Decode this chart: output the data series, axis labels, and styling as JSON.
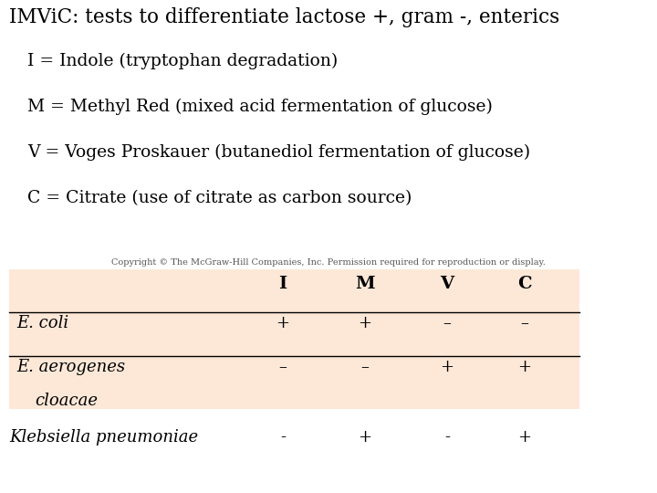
{
  "title": "IMViC: tests to differentiate lactose +, gram -, enterics",
  "lines": [
    "I = Indole (tryptophan degradation)",
    "M = Methyl Red (mixed acid fermentation of glucose)",
    "V = Voges Proskauer (butanediol fermentation of glucose)",
    "C = Citrate (use of citrate as carbon source)"
  ],
  "copyright": "Copyright © The McGraw-Hill Companies, Inc. Permission required for reproduction or display.",
  "table_bg": "#fde8d8",
  "table_headers": [
    "I",
    "M",
    "V",
    "C"
  ],
  "table_rows": [
    {
      "name": "E. coli",
      "values": [
        "+",
        "+",
        "–",
        "–"
      ]
    },
    {
      "name": "E. aerogenes",
      "values": [
        "–",
        "–",
        "+",
        "+"
      ]
    }
  ],
  "table_subtext": "cloacae",
  "extra_row": {
    "name": "Klebsiella pneumoniae",
    "values": [
      "-",
      "+",
      "-",
      "+"
    ]
  },
  "bg_color": "#ffffff",
  "title_fontsize": 15.5,
  "text_fontsize": 13.5,
  "table_header_fontsize": 14,
  "table_cell_fontsize": 13,
  "copyright_fontsize": 7
}
